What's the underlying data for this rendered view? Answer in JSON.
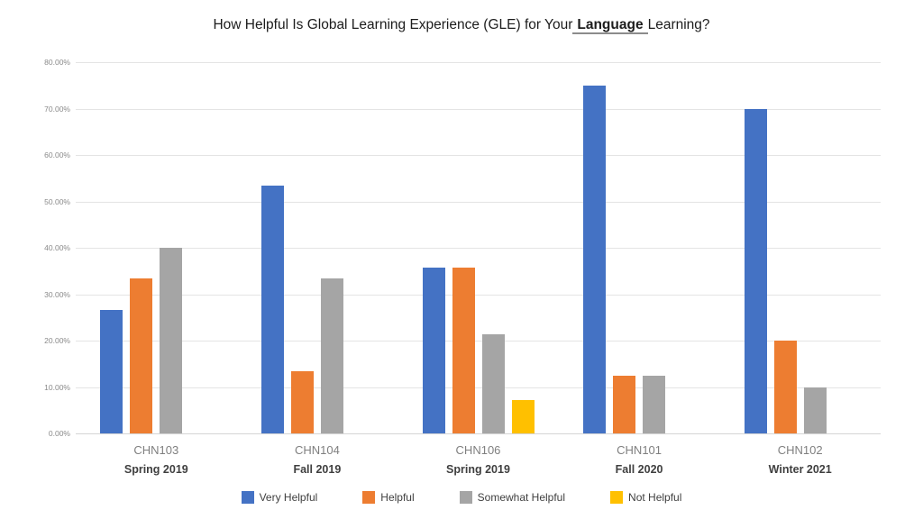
{
  "title": {
    "prefix": "How Helpful Is Global Learning Experience (GLE) for Your",
    "highlight": "Language",
    "suffix": "Learning?"
  },
  "chart_data": {
    "type": "bar",
    "title": "How Helpful Is Global Learning Experience (GLE) for Your Language Learning?",
    "categories": [
      "CHN103",
      "CHN104",
      "CHN106",
      "CHN101",
      "CHN102"
    ],
    "category_sublabels": [
      "Spring 2019",
      "Fall 2019",
      "Spring 2019",
      "Fall 2020",
      "Winter 2021"
    ],
    "series": [
      {
        "name": "Very Helpful",
        "color": "#4472C4",
        "values": [
          26.67,
          53.33,
          35.71,
          75.0,
          70.0
        ]
      },
      {
        "name": "Helpful",
        "color": "#ED7D31",
        "values": [
          33.33,
          13.33,
          35.71,
          12.5,
          20.0
        ]
      },
      {
        "name": "Somewhat Helpful",
        "color": "#A5A5A5",
        "values": [
          40.0,
          33.33,
          21.43,
          12.5,
          10.0
        ]
      },
      {
        "name": "Not Helpful",
        "color": "#FFC000",
        "values": [
          0.0,
          0.0,
          7.14,
          0.0,
          0.0
        ]
      }
    ],
    "ylim": [
      0,
      80
    ],
    "ytick_step": 10,
    "ytick_labels": [
      "0.00%",
      "10.00%",
      "20.00%",
      "30.00%",
      "40.00%",
      "50.00%",
      "60.00%",
      "70.00%",
      "80.00%"
    ],
    "grid": true,
    "legend_position": "bottom"
  }
}
